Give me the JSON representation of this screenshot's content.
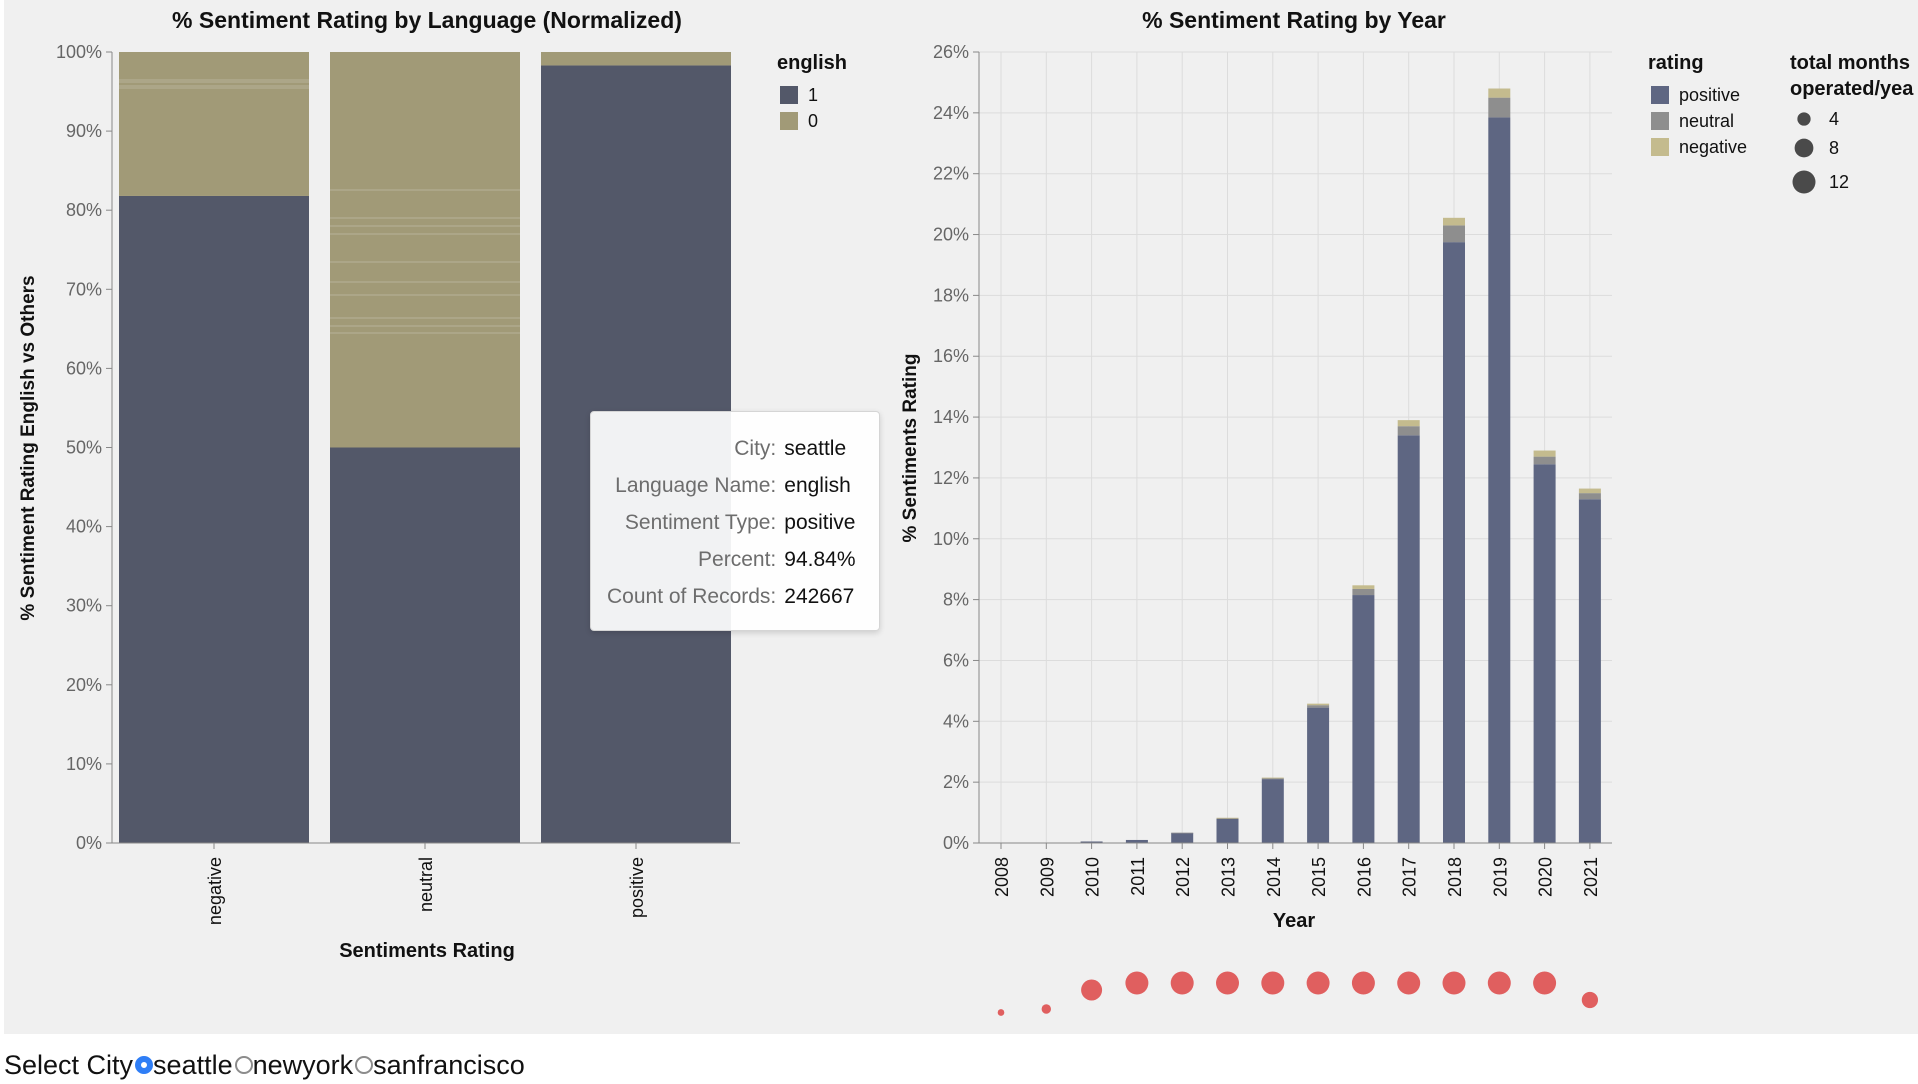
{
  "controls": {
    "select_label": "Select City",
    "options": [
      "seattle",
      "newyork",
      "sanfrancisco"
    ],
    "selected": "seattle"
  },
  "tooltip": {
    "rows": [
      {
        "key": "City:",
        "value": "seattle"
      },
      {
        "key": "Language Name:",
        "value": "english"
      },
      {
        "key": "Sentiment Type:",
        "value": "positive"
      },
      {
        "key": "Percent:",
        "value": "94.84%"
      },
      {
        "key": "Count of Records:",
        "value": "242667"
      }
    ]
  },
  "colors": {
    "english_1": "#535869",
    "english_0": "#a19a77",
    "positive": "#5e6682",
    "neutral": "#8e8e8e",
    "negative": "#c4bb8e",
    "months_dot": "#e05f5f",
    "legend_dot": "#4a4a4a"
  },
  "chart_data": [
    {
      "type": "bar",
      "stacked": "normalized",
      "title": "% Sentiment Rating by Language (Normalized)",
      "xlabel": "Sentiments Rating",
      "ylabel": "% Sentiment Rating English vs Others",
      "categories": [
        "negative",
        "neutral",
        "positive"
      ],
      "ylim": [
        0,
        100
      ],
      "y_ticks": [
        "0%",
        "10%",
        "20%",
        "30%",
        "40%",
        "50%",
        "60%",
        "70%",
        "80%",
        "90%",
        "100%"
      ],
      "legend": {
        "title": "english",
        "entries": [
          "1",
          "0"
        ],
        "placement": "top-right"
      },
      "series": [
        {
          "name": "1",
          "values": [
            81.8,
            50.0,
            98.3
          ]
        },
        {
          "name": "0",
          "values": [
            18.2,
            50.0,
            1.7
          ]
        }
      ]
    },
    {
      "type": "bar",
      "stacked": true,
      "title": "% Sentiment Rating by Year",
      "xlabel": "Year",
      "ylabel": "% Sentiments Rating",
      "categories": [
        "2008",
        "2009",
        "2010",
        "2011",
        "2012",
        "2013",
        "2014",
        "2015",
        "2016",
        "2017",
        "2018",
        "2019",
        "2020",
        "2021"
      ],
      "ylim": [
        0,
        26
      ],
      "y_ticks": [
        "0%",
        "2%",
        "4%",
        "6%",
        "8%",
        "10%",
        "12%",
        "14%",
        "16%",
        "18%",
        "20%",
        "22%",
        "24%",
        "26%"
      ],
      "grid": true,
      "legend": {
        "title": "rating",
        "entries": [
          "positive",
          "neutral",
          "negative"
        ],
        "placement": "top-right"
      },
      "series": [
        {
          "name": "positive",
          "values": [
            0.0,
            0.0,
            0.05,
            0.1,
            0.33,
            0.8,
            2.1,
            4.45,
            8.15,
            13.4,
            19.75,
            23.85,
            12.45,
            11.3
          ]
        },
        {
          "name": "neutral",
          "values": [
            0.0,
            0.0,
            0.0,
            0.0,
            0.01,
            0.02,
            0.03,
            0.08,
            0.2,
            0.3,
            0.55,
            0.65,
            0.25,
            0.2
          ]
        },
        {
          "name": "negative",
          "values": [
            0.0,
            0.0,
            0.0,
            0.0,
            0.0,
            0.01,
            0.02,
            0.05,
            0.12,
            0.2,
            0.25,
            0.3,
            0.2,
            0.15
          ]
        }
      ]
    },
    {
      "type": "scatter",
      "legend": {
        "title": [
          "total months",
          "operated/yea"
        ],
        "entries": [
          "4",
          "8",
          "12"
        ],
        "placement": "top-right"
      },
      "x": [
        "2008",
        "2009",
        "2010",
        "2011",
        "2012",
        "2013",
        "2014",
        "2015",
        "2016",
        "2017",
        "2018",
        "2019",
        "2020",
        "2021"
      ],
      "size_values": [
        1,
        2,
        10,
        12,
        12,
        12,
        12,
        12,
        12,
        12,
        12,
        12,
        12,
        6
      ]
    }
  ]
}
